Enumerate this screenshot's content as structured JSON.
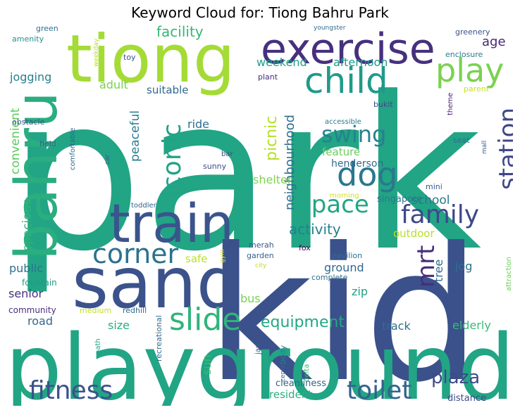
{
  "title": "Keyword Cloud for: Tiong Bahru Park",
  "words": [
    {
      "text": "park",
      "color": "#21a585"
    },
    {
      "text": "kid",
      "color": "#3b518b"
    },
    {
      "text": "playground",
      "color": "#21a585"
    },
    {
      "text": "tiong",
      "color": "#a5db36"
    },
    {
      "text": "bahru",
      "color": "#2aad7f"
    },
    {
      "text": "sand",
      "color": "#3b528b"
    },
    {
      "text": "train",
      "color": "#3a548c"
    },
    {
      "text": "exercise",
      "color": "#46307e"
    },
    {
      "text": "child",
      "color": "#1f9a8a"
    },
    {
      "text": "play",
      "color": "#7ad151"
    },
    {
      "text": "dog",
      "color": "#2a788e"
    },
    {
      "text": "slide",
      "color": "#2fb47c"
    },
    {
      "text": "fitness",
      "color": "#3b528b"
    },
    {
      "text": "toilet",
      "color": "#33638d"
    },
    {
      "text": "corner",
      "color": "#2c728e"
    },
    {
      "text": "family",
      "color": "#3e4989"
    },
    {
      "text": "space",
      "color": "#21a685"
    },
    {
      "text": "station",
      "color": "#404688"
    },
    {
      "text": "iconic",
      "color": "#20a386"
    },
    {
      "text": "swing",
      "color": "#26828e"
    },
    {
      "text": "mrt",
      "color": "#472d7b"
    },
    {
      "text": "picnic",
      "color": "#b8de29"
    },
    {
      "text": "plaza",
      "color": "#3e4a89"
    },
    {
      "text": "equipment",
      "color": "#22a884"
    },
    {
      "text": "activity",
      "color": "#27808e"
    },
    {
      "text": "facility",
      "color": "#35b779"
    },
    {
      "text": "neighbourhood",
      "color": "#2d708e"
    },
    {
      "text": "age",
      "color": "#482576"
    },
    {
      "text": "weekend",
      "color": "#1fa088"
    },
    {
      "text": "afternoon",
      "color": "#1f988b"
    },
    {
      "text": "jogging",
      "color": "#277f8e"
    },
    {
      "text": "adult",
      "color": "#7ad151"
    },
    {
      "text": "suitable",
      "color": "#31688e"
    },
    {
      "text": "convenient",
      "color": "#5ec962"
    },
    {
      "text": "peaceful",
      "color": "#277e8e"
    },
    {
      "text": "ride",
      "color": "#2c728e"
    },
    {
      "text": "feature",
      "color": "#6ccd5a"
    },
    {
      "text": "henderson",
      "color": "#2f6b8e"
    },
    {
      "text": "singapore",
      "color": "#2a788e"
    },
    {
      "text": "school",
      "color": "#29798e"
    },
    {
      "text": "shelter",
      "color": "#7fd34e"
    },
    {
      "text": "outdoor",
      "color": "#b8de29"
    },
    {
      "text": "spacious",
      "color": "#2db27d"
    },
    {
      "text": "public",
      "color": "#2c728e"
    },
    {
      "text": "safe",
      "color": "#bddf26"
    },
    {
      "text": "ground",
      "color": "#31688e"
    },
    {
      "text": "tree",
      "color": "#31688e"
    },
    {
      "text": "jog",
      "color": "#2c718e"
    },
    {
      "text": "senior",
      "color": "#46307e"
    },
    {
      "text": "bus",
      "color": "#77d153"
    },
    {
      "text": "zip",
      "color": "#1fa088"
    },
    {
      "text": "road",
      "color": "#31688e"
    },
    {
      "text": "size",
      "color": "#29af7f"
    },
    {
      "text": "sun",
      "color": "#3bbb75"
    },
    {
      "text": "track",
      "color": "#2e6e8e"
    },
    {
      "text": "elderly",
      "color": "#3aba76"
    },
    {
      "text": "resident",
      "color": "#29af7f"
    },
    {
      "text": "cleanliness",
      "color": "#33638d"
    },
    {
      "text": "distance",
      "color": "#3e4a89"
    },
    {
      "text": "community",
      "color": "#472f7d"
    },
    {
      "text": "medium",
      "color": "#c2df23"
    },
    {
      "text": "redhill",
      "color": "#306a8e"
    },
    {
      "text": "fountain",
      "color": "#1f9a8a"
    },
    {
      "text": "merah",
      "color": "#3a548c"
    },
    {
      "text": "garden",
      "color": "#33638d"
    },
    {
      "text": "fox",
      "color": "#440154"
    },
    {
      "text": "pavilion",
      "color": "#2e6f8e"
    },
    {
      "text": "complete",
      "color": "#2c738e"
    },
    {
      "text": "city",
      "color": "#bddf26"
    },
    {
      "text": "gym",
      "color": "#e2e418"
    },
    {
      "text": "morning",
      "color": "#d2e21b"
    },
    {
      "text": "mini",
      "color": "#355f8d"
    },
    {
      "text": "attraction",
      "color": "#6ece58"
    },
    {
      "text": "toddler",
      "color": "#33638d"
    },
    {
      "text": "sunny",
      "color": "#3e4989"
    },
    {
      "text": "bar",
      "color": "#3e4c8a"
    },
    {
      "text": "car",
      "color": "#35608d"
    },
    {
      "text": "comfortable",
      "color": "#31688e"
    },
    {
      "text": "field",
      "color": "#33638d"
    },
    {
      "text": "obstacle",
      "color": "#3b528b"
    },
    {
      "text": "seat",
      "color": "#2d708e"
    },
    {
      "text": "mall",
      "color": "#355f8d"
    },
    {
      "text": "accessible",
      "color": "#29798e"
    },
    {
      "text": "bukit",
      "color": "#3e4a89"
    },
    {
      "text": "plant",
      "color": "#472d7b"
    },
    {
      "text": "theme",
      "color": "#482173"
    },
    {
      "text": "parent",
      "color": "#c8e020"
    },
    {
      "text": "enclosure",
      "color": "#287c8e"
    },
    {
      "text": "greenery",
      "color": "#3a548c"
    },
    {
      "text": "youngster",
      "color": "#2f6b8e"
    },
    {
      "text": "weekday",
      "color": "#b5de2b"
    },
    {
      "text": "toy",
      "color": "#3b528b"
    },
    {
      "text": "green",
      "color": "#2d708e"
    },
    {
      "text": "amenity",
      "color": "#20928c"
    },
    {
      "text": "recreational",
      "color": "#2f6c8e"
    },
    {
      "text": "path",
      "color": "#21a685"
    },
    {
      "text": "jan",
      "color": "#34618d"
    },
    {
      "text": "body",
      "color": "#26828e"
    },
    {
      "text": "center",
      "color": "#31688e"
    },
    {
      "text": "delta",
      "color": "#35b779"
    }
  ]
}
